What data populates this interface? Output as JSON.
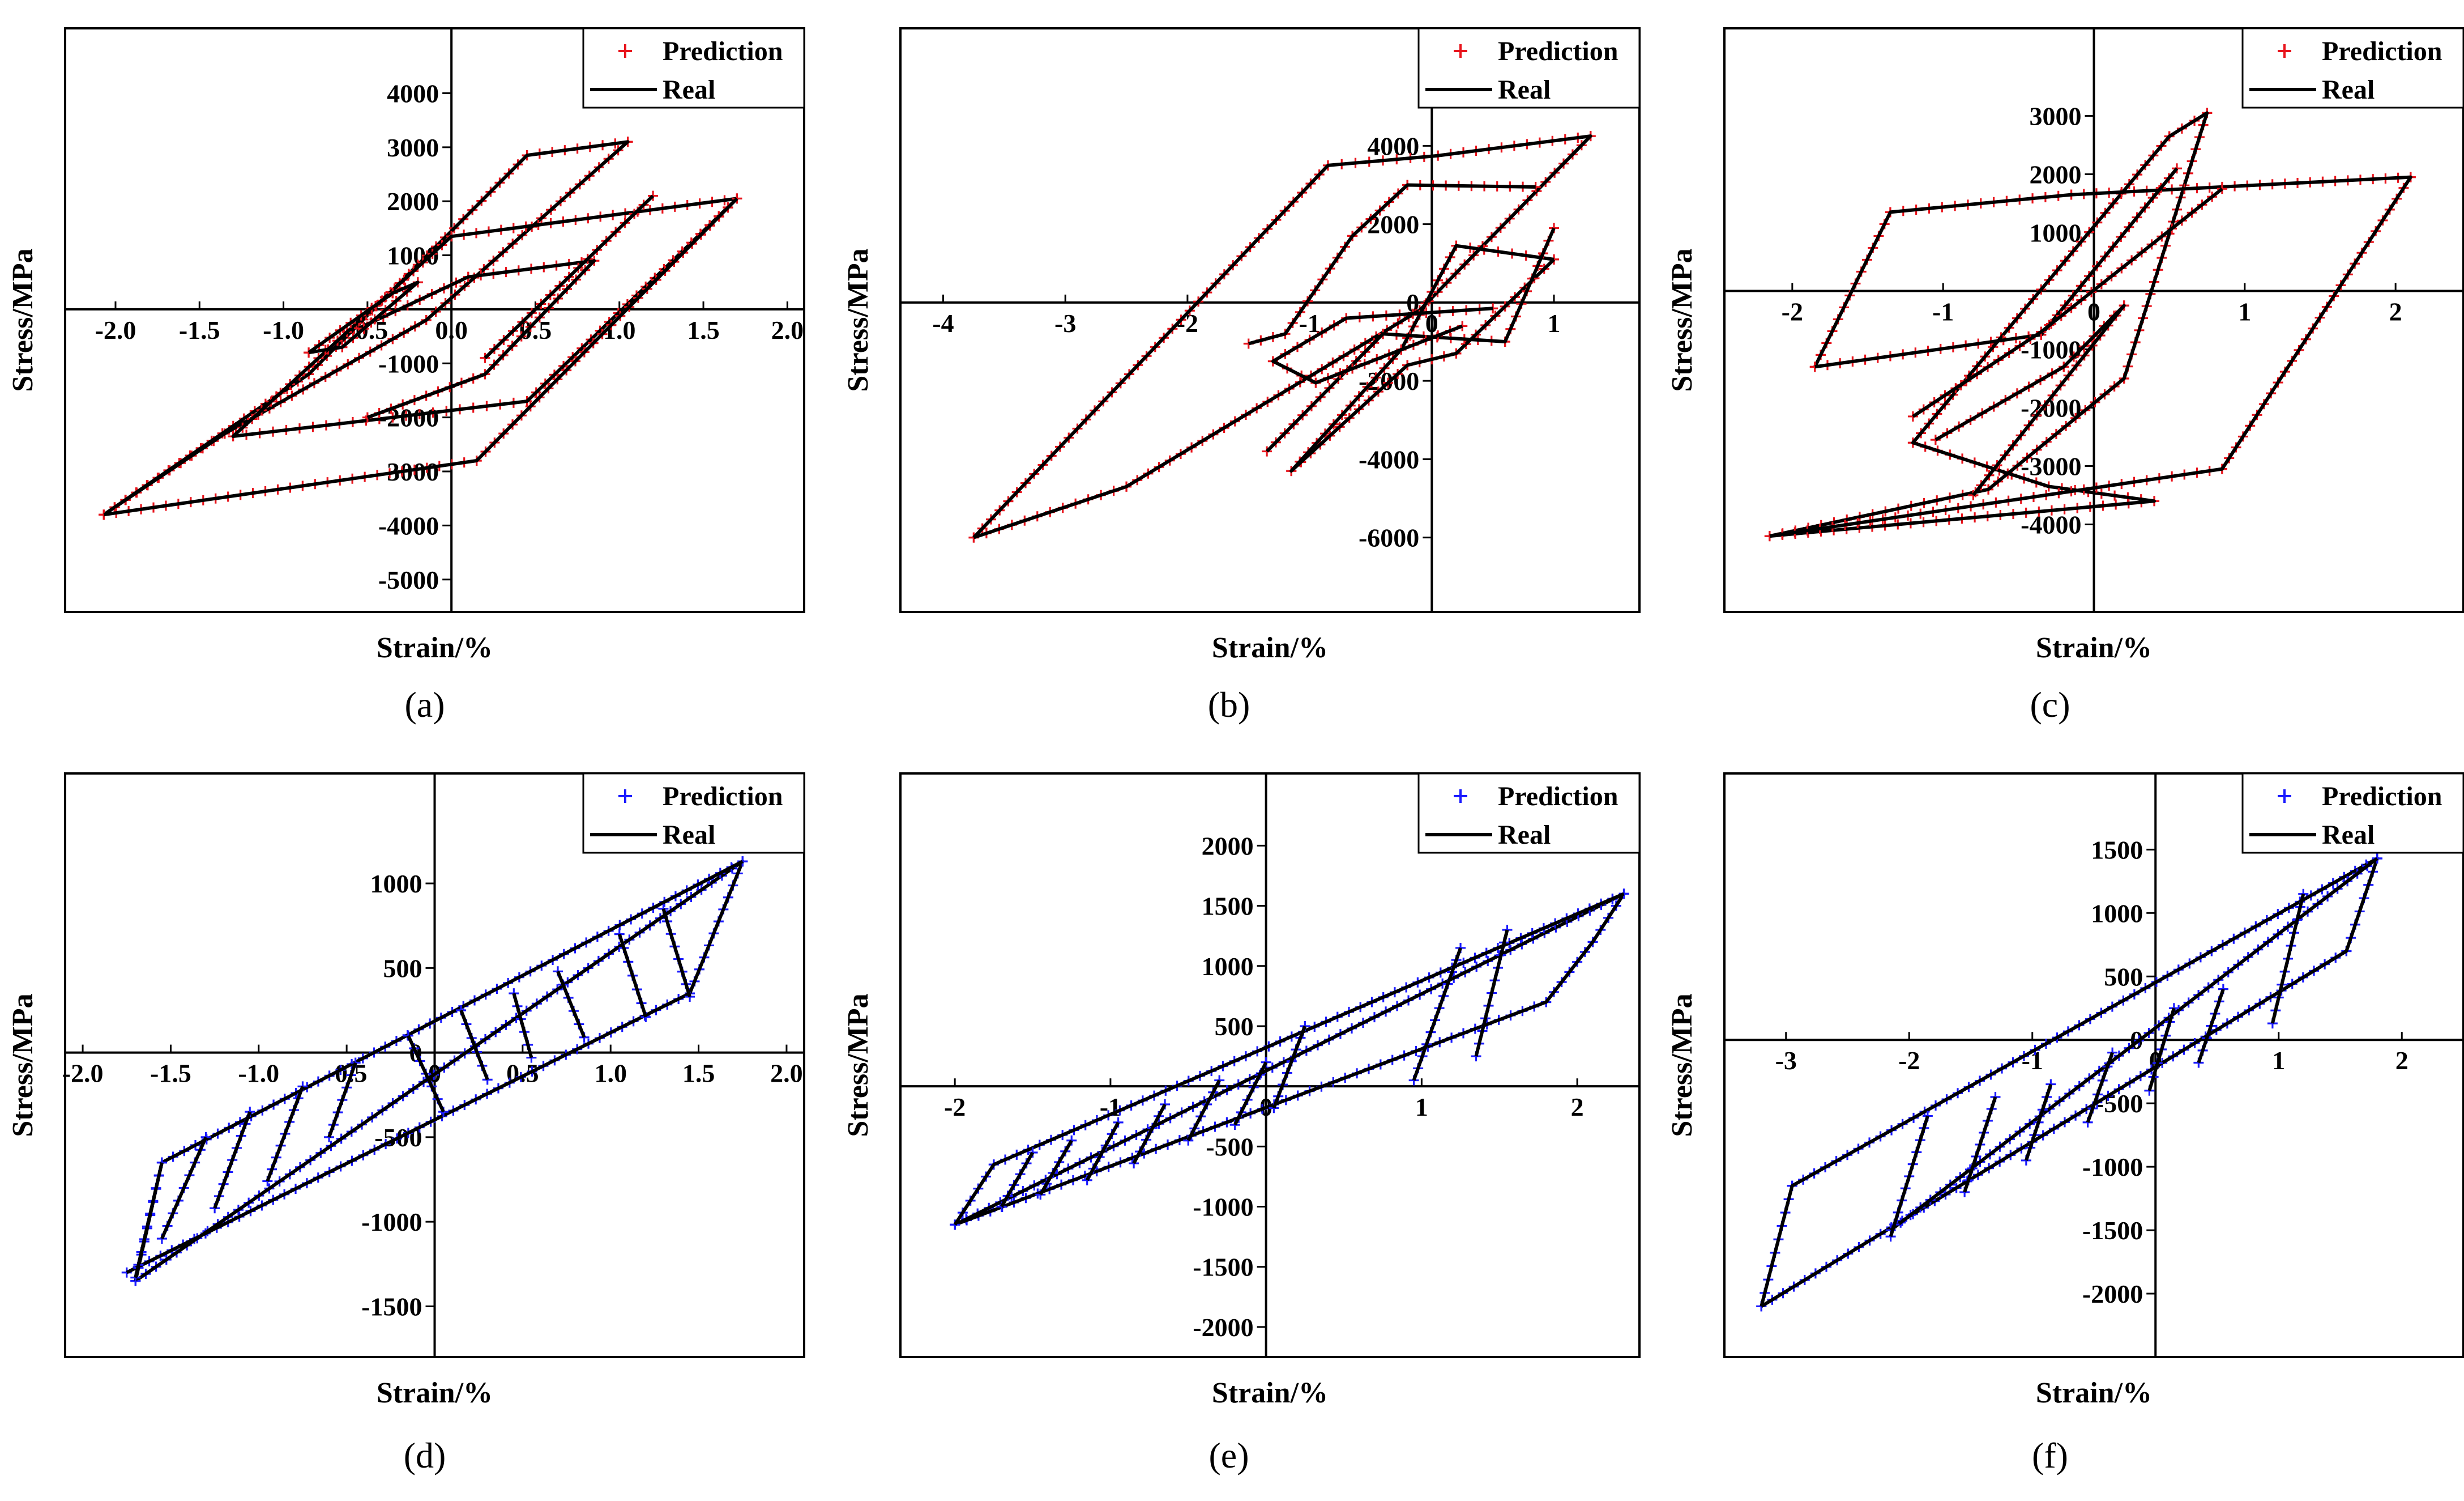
{
  "figure": {
    "legend_prediction": "Prediction",
    "legend_real": "Real",
    "colors": {
      "red": "#e8141c",
      "blue": "#1a1aff",
      "black": "#000000"
    }
  },
  "chart_data": [
    {
      "panel": "(a)",
      "type": "line",
      "marker_color": "#e8141c",
      "xlabel": "Strain/%",
      "ylabel": "Stress/MPa",
      "xlim": [
        -2.3,
        2.1
      ],
      "ylim": [
        -5600,
        5200
      ],
      "xticks": [
        "-2.0",
        "-1.5",
        "-1.0",
        "-0.5",
        "0.0",
        "0.5",
        "1.0",
        "1.5",
        "2.0"
      ],
      "xtick_values": [
        -2.0,
        -1.5,
        -1.0,
        -0.5,
        0.0,
        0.5,
        1.0,
        1.5,
        2.0
      ],
      "yticks": [
        "4000",
        "3000",
        "2000",
        "1000",
        "-1000",
        "-2000",
        "-3000",
        "-4000",
        "-5000"
      ],
      "ytick_values": [
        4000,
        3000,
        2000,
        1000,
        -1000,
        -2000,
        -3000,
        -4000,
        -5000
      ],
      "series": [
        {
          "name": "Real",
          "points": [
            [
              -2.07,
              -3800
            ],
            [
              -0.85,
              -1200
            ],
            [
              0.45,
              2850
            ],
            [
              1.05,
              3100
            ],
            [
              -0.15,
              -200
            ],
            [
              -1.35,
              -2300
            ],
            [
              -2.07,
              -3800
            ]
          ]
        },
        {
          "name": "Real",
          "points": [
            [
              1.7,
              2050
            ],
            [
              0.45,
              -1700
            ],
            [
              -0.35,
              -2000
            ],
            [
              -1.3,
              -2350
            ],
            [
              0.0,
              1350
            ],
            [
              1.7,
              2050
            ]
          ]
        },
        {
          "name": "Real",
          "points": [
            [
              1.7,
              2050
            ],
            [
              0.15,
              -2800
            ],
            [
              -2.07,
              -3800
            ]
          ]
        },
        {
          "name": "Real",
          "points": [
            [
              -0.55,
              -350
            ],
            [
              0.1,
              600
            ],
            [
              0.85,
              900
            ],
            [
              0.2,
              -1200
            ],
            [
              -0.5,
              -2000
            ]
          ]
        },
        {
          "name": "Real",
          "points": [
            [
              1.2,
              2100
            ],
            [
              0.2,
              -900
            ]
          ]
        },
        {
          "name": "Real",
          "points": [
            [
              -0.85,
              -800
            ],
            [
              -0.35,
              300
            ],
            [
              -0.2,
              500
            ],
            [
              -0.65,
              -700
            ],
            [
              -0.85,
              -800
            ]
          ]
        }
      ]
    },
    {
      "panel": "(b)",
      "type": "line",
      "marker_color": "#e8141c",
      "xlabel": "Strain/%",
      "ylabel": "Stress/MPa",
      "xlim": [
        -4.35,
        1.7
      ],
      "ylim": [
        -7900,
        7000
      ],
      "xticks": [
        "-4",
        "-3",
        "-2",
        "-1",
        "0",
        "1"
      ],
      "xtick_values": [
        -4,
        -3,
        -2,
        -1,
        0,
        1
      ],
      "yticks": [
        "4000",
        "2000",
        "0",
        "-2000",
        "-4000",
        "-6000"
      ],
      "ytick_values": [
        4000,
        2000,
        0,
        -2000,
        -4000,
        -6000
      ],
      "series": [
        {
          "name": "Real",
          "points": [
            [
              -3.75,
              -6000
            ],
            [
              -0.85,
              3500
            ],
            [
              0.05,
              3750
            ],
            [
              1.3,
              4250
            ],
            [
              -0.1,
              -200
            ],
            [
              -2.5,
              -4700
            ],
            [
              -3.75,
              -6000
            ]
          ]
        },
        {
          "name": "Real",
          "points": [
            [
              1.0,
              1100
            ],
            [
              0.2,
              -1300
            ],
            [
              -0.2,
              -1600
            ],
            [
              -1.15,
              -4300
            ],
            [
              -0.25,
              -1200
            ],
            [
              0.2,
              1450
            ],
            [
              1.0,
              1100
            ]
          ]
        },
        {
          "name": "Real",
          "points": [
            [
              1.0,
              1900
            ],
            [
              0.6,
              -1000
            ],
            [
              -0.4,
              -800
            ],
            [
              -1.35,
              -3800
            ]
          ]
        },
        {
          "name": "Real",
          "points": [
            [
              0.85,
              2950
            ],
            [
              -0.2,
              3000
            ],
            [
              -0.65,
              1700
            ],
            [
              -1.2,
              -800
            ],
            [
              -1.5,
              -1050
            ]
          ]
        },
        {
          "name": "Real",
          "points": [
            [
              0.5,
              -150
            ],
            [
              -0.7,
              -400
            ],
            [
              -1.3,
              -1500
            ],
            [
              -0.95,
              -2050
            ],
            [
              0.25,
              -600
            ]
          ]
        }
      ]
    },
    {
      "panel": "(c)",
      "type": "line",
      "marker_color": "#e8141c",
      "xlabel": "Strain/%",
      "ylabel": "Stress/MPa",
      "xlim": [
        -2.45,
        2.45
      ],
      "ylim": [
        -5500,
        4500
      ],
      "xticks": [
        "-2",
        "-1",
        "0",
        "1",
        "2"
      ],
      "xtick_values": [
        -2,
        -1,
        0,
        1,
        2
      ],
      "yticks": [
        "3000",
        "2000",
        "1000",
        "-1000",
        "-2000",
        "-3000",
        "-4000"
      ],
      "ytick_values": [
        3000,
        2000,
        1000,
        -1000,
        -2000,
        -3000,
        -4000
      ],
      "series": [
        {
          "name": "Real",
          "points": [
            [
              -2.15,
              -4200
            ],
            [
              -0.7,
              -3400
            ],
            [
              0.2,
              -1500
            ],
            [
              0.75,
              3050
            ],
            [
              0.5,
              2650
            ],
            [
              -1.2,
              -2600
            ],
            [
              -0.3,
              -3350
            ],
            [
              0.4,
              -3600
            ],
            [
              -2.15,
              -4200
            ]
          ]
        },
        {
          "name": "Real",
          "points": [
            [
              -1.85,
              -1300
            ],
            [
              -1.35,
              1350
            ],
            [
              -0.15,
              1650
            ],
            [
              2.1,
              1950
            ],
            [
              0.85,
              -3050
            ],
            [
              -2.15,
              -4200
            ]
          ]
        },
        {
          "name": "Real",
          "points": [
            [
              -1.85,
              -1300
            ],
            [
              -0.35,
              -750
            ],
            [
              0.55,
              2100
            ]
          ]
        },
        {
          "name": "Real",
          "points": [
            [
              -1.05,
              -2550
            ],
            [
              -0.2,
              -1300
            ],
            [
              0.2,
              -250
            ],
            [
              -0.8,
              -3500
            ]
          ]
        },
        {
          "name": "Real",
          "points": [
            [
              0.85,
              1750
            ],
            [
              -0.35,
              -700
            ],
            [
              -1.2,
              -2150
            ]
          ]
        }
      ]
    },
    {
      "panel": "(d)",
      "type": "line",
      "marker_color": "#1a1aff",
      "xlabel": "Strain/%",
      "ylabel": "Stress/MPa",
      "xlim": [
        -2.1,
        2.1
      ],
      "ylim": [
        -1800,
        1650
      ],
      "xticks": [
        "-2.0",
        "-1.5",
        "-1.0",
        "-0.5",
        "0",
        "0.5",
        "1.0",
        "1.5",
        "2.0"
      ],
      "xtick_values": [
        -2.0,
        -1.5,
        -1.0,
        -0.5,
        0,
        0.5,
        1.0,
        1.5,
        2.0
      ],
      "yticks": [
        "1000",
        "500",
        "0",
        "-500",
        "-1000",
        "-1500"
      ],
      "ytick_values": [
        1000,
        500,
        0,
        -500,
        -1000,
        -1500
      ],
      "series": [
        {
          "name": "Real",
          "points": [
            [
              -1.7,
              -1350
            ],
            [
              1.75,
              1130
            ],
            [
              1.45,
              350
            ],
            [
              -1.75,
              -1300
            ]
          ]
        },
        {
          "name": "Real",
          "points": [
            [
              -1.7,
              -1350
            ],
            [
              -1.55,
              -650
            ],
            [
              1.75,
              1130
            ]
          ]
        },
        {
          "name": "Real",
          "points": [
            [
              -1.55,
              -650
            ],
            [
              -1.7,
              -1330
            ]
          ]
        },
        {
          "name": "Real",
          "points": [
            [
              -1.3,
              -500
            ],
            [
              -1.55,
              -1100
            ]
          ]
        },
        {
          "name": "Real",
          "points": [
            [
              -1.05,
              -350
            ],
            [
              -1.25,
              -920
            ]
          ]
        },
        {
          "name": "Real",
          "points": [
            [
              -0.75,
              -200
            ],
            [
              -0.95,
              -760
            ]
          ]
        },
        {
          "name": "Real",
          "points": [
            [
              -0.45,
              -60
            ],
            [
              -0.6,
              -500
            ]
          ]
        },
        {
          "name": "Real",
          "points": [
            [
              -0.15,
              100
            ],
            [
              0.05,
              -350
            ]
          ]
        },
        {
          "name": "Real",
          "points": [
            [
              0.15,
              250
            ],
            [
              0.3,
              -160
            ]
          ]
        },
        {
          "name": "Real",
          "points": [
            [
              0.45,
              350
            ],
            [
              0.55,
              -30
            ]
          ]
        },
        {
          "name": "Real",
          "points": [
            [
              0.7,
              480
            ],
            [
              0.85,
              90
            ]
          ]
        },
        {
          "name": "Real",
          "points": [
            [
              1.05,
              700
            ],
            [
              1.2,
              210
            ]
          ]
        },
        {
          "name": "Real",
          "points": [
            [
              1.3,
              850
            ],
            [
              1.45,
              330
            ]
          ]
        }
      ]
    },
    {
      "panel": "(e)",
      "type": "line",
      "marker_color": "#1a1aff",
      "xlabel": "Strain/%",
      "ylabel": "Stress/MPa",
      "xlim": [
        -2.35,
        2.4
      ],
      "ylim": [
        -2250,
        2600
      ],
      "xticks": [
        "-2",
        "-1",
        "0",
        "1",
        "2"
      ],
      "xtick_values": [
        -2,
        -1,
        0,
        1,
        2
      ],
      "yticks": [
        "2000",
        "1500",
        "1000",
        "500",
        "-500",
        "-1000",
        "-1500",
        "-2000"
      ],
      "ytick_values": [
        2000,
        1500,
        1000,
        500,
        -500,
        -1000,
        -1500,
        -2000
      ],
      "series": [
        {
          "name": "Real",
          "points": [
            [
              -2.0,
              -1150
            ],
            [
              2.3,
              1600
            ],
            [
              2.1,
              1200
            ],
            [
              1.8,
              700
            ],
            [
              -2.0,
              -1150
            ]
          ]
        },
        {
          "name": "Real",
          "points": [
            [
              -2.0,
              -1150
            ],
            [
              -1.75,
              -650
            ],
            [
              2.3,
              1600
            ]
          ]
        },
        {
          "name": "Real",
          "points": [
            [
              -1.5,
              -550
            ],
            [
              -1.7,
              -1000
            ]
          ]
        },
        {
          "name": "Real",
          "points": [
            [
              -1.25,
              -450
            ],
            [
              -1.45,
              -900
            ]
          ]
        },
        {
          "name": "Real",
          "points": [
            [
              -0.95,
              -300
            ],
            [
              -1.15,
              -780
            ]
          ]
        },
        {
          "name": "Real",
          "points": [
            [
              -0.65,
              -150
            ],
            [
              -0.85,
              -640
            ]
          ]
        },
        {
          "name": "Real",
          "points": [
            [
              -0.3,
              50
            ],
            [
              -0.5,
              -450
            ]
          ]
        },
        {
          "name": "Real",
          "points": [
            [
              0.0,
              200
            ],
            [
              -0.2,
              -320
            ]
          ]
        },
        {
          "name": "Real",
          "points": [
            [
              0.25,
              500
            ],
            [
              0.05,
              -180
            ]
          ]
        },
        {
          "name": "Real",
          "points": [
            [
              1.25,
              1150
            ],
            [
              0.95,
              50
            ]
          ]
        },
        {
          "name": "Real",
          "points": [
            [
              1.55,
              1300
            ],
            [
              1.35,
              250
            ]
          ]
        }
      ]
    },
    {
      "panel": "(f)",
      "type": "line",
      "marker_color": "#1a1aff",
      "xlabel": "Strain/%",
      "ylabel": "Stress/MPa",
      "xlim": [
        -3.5,
        2.5
      ],
      "ylim": [
        -2500,
        2100
      ],
      "xticks": [
        "-3",
        "-2",
        "-1",
        "0",
        "1",
        "2"
      ],
      "xtick_values": [
        -3,
        -2,
        -1,
        0,
        1,
        2
      ],
      "yticks": [
        "1500",
        "1000",
        "500",
        "0",
        "-500",
        "-1000",
        "-1500",
        "-2000"
      ],
      "ytick_values": [
        1500,
        1000,
        500,
        0,
        -500,
        -1000,
        -1500,
        -2000
      ],
      "series": [
        {
          "name": "Real",
          "points": [
            [
              -3.2,
              -2100
            ],
            [
              -2.95,
              -1150
            ],
            [
              1.8,
              1430
            ],
            [
              1.55,
              700
            ],
            [
              -3.2,
              -2100
            ]
          ]
        },
        {
          "name": "Real",
          "points": [
            [
              -2.15,
              -1500
            ],
            [
              1.8,
              1430
            ]
          ]
        },
        {
          "name": "Real",
          "points": [
            [
              -1.85,
              -600
            ],
            [
              -2.15,
              -1550
            ]
          ]
        },
        {
          "name": "Real",
          "points": [
            [
              -1.3,
              -450
            ],
            [
              -1.55,
              -1200
            ]
          ]
        },
        {
          "name": "Real",
          "points": [
            [
              -0.85,
              -350
            ],
            [
              -1.05,
              -950
            ]
          ]
        },
        {
          "name": "Real",
          "points": [
            [
              -0.35,
              -100
            ],
            [
              -0.55,
              -650
            ]
          ]
        },
        {
          "name": "Real",
          "points": [
            [
              0.15,
              250
            ],
            [
              -0.05,
              -400
            ]
          ]
        },
        {
          "name": "Real",
          "points": [
            [
              0.55,
              400
            ],
            [
              0.35,
              -180
            ]
          ]
        },
        {
          "name": "Real",
          "points": [
            [
              1.2,
              1150
            ],
            [
              0.95,
              130
            ]
          ]
        }
      ]
    }
  ]
}
